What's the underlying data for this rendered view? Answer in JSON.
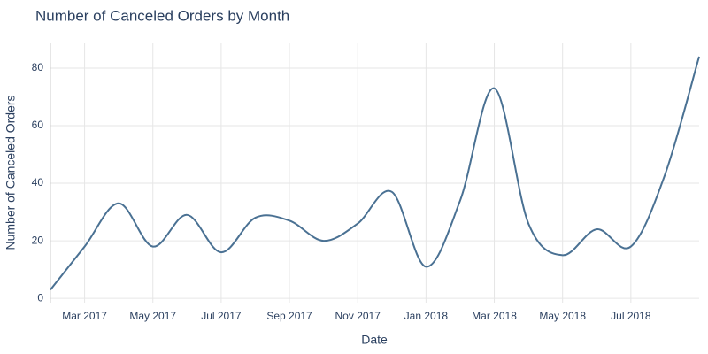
{
  "chart_data": {
    "type": "line",
    "title": "Number of Canceled Orders by Month",
    "x_label": "Date",
    "y_label": "Number of Canceled Orders",
    "x": [
      "2017-02",
      "2017-03",
      "2017-04",
      "2017-05",
      "2017-06",
      "2017-07",
      "2017-08",
      "2017-09",
      "2017-10",
      "2017-11",
      "2017-12",
      "2018-01",
      "2018-02",
      "2018-03",
      "2018-04",
      "2018-05",
      "2018-06",
      "2018-07",
      "2018-08",
      "2018-09"
    ],
    "series": [
      {
        "name": "Canceled Orders",
        "color": "#4a7193",
        "values": [
          3,
          18,
          33,
          18,
          29,
          16,
          28,
          27,
          20,
          26,
          37,
          11,
          34,
          73,
          26,
          15,
          24,
          18,
          43,
          84
        ]
      }
    ],
    "xlim": [
      "2017-02",
      "2018-09"
    ],
    "xticks": [
      {
        "value": "2017-03",
        "label": "Mar 2017"
      },
      {
        "value": "2017-05",
        "label": "May 2017"
      },
      {
        "value": "2017-07",
        "label": "Jul 2017"
      },
      {
        "value": "2017-09",
        "label": "Sep 2017"
      },
      {
        "value": "2017-11",
        "label": "Nov 2017"
      },
      {
        "value": "2018-01",
        "label": "Jan 2018"
      },
      {
        "value": "2018-03",
        "label": "Mar 2018"
      },
      {
        "value": "2018-05",
        "label": "May 2018"
      },
      {
        "value": "2018-07",
        "label": "Jul 2018"
      }
    ],
    "ylim": [
      -1.5,
      88.6
    ],
    "yticks": [
      0,
      20,
      40,
      60,
      80
    ],
    "grid": true,
    "smooth": true
  }
}
